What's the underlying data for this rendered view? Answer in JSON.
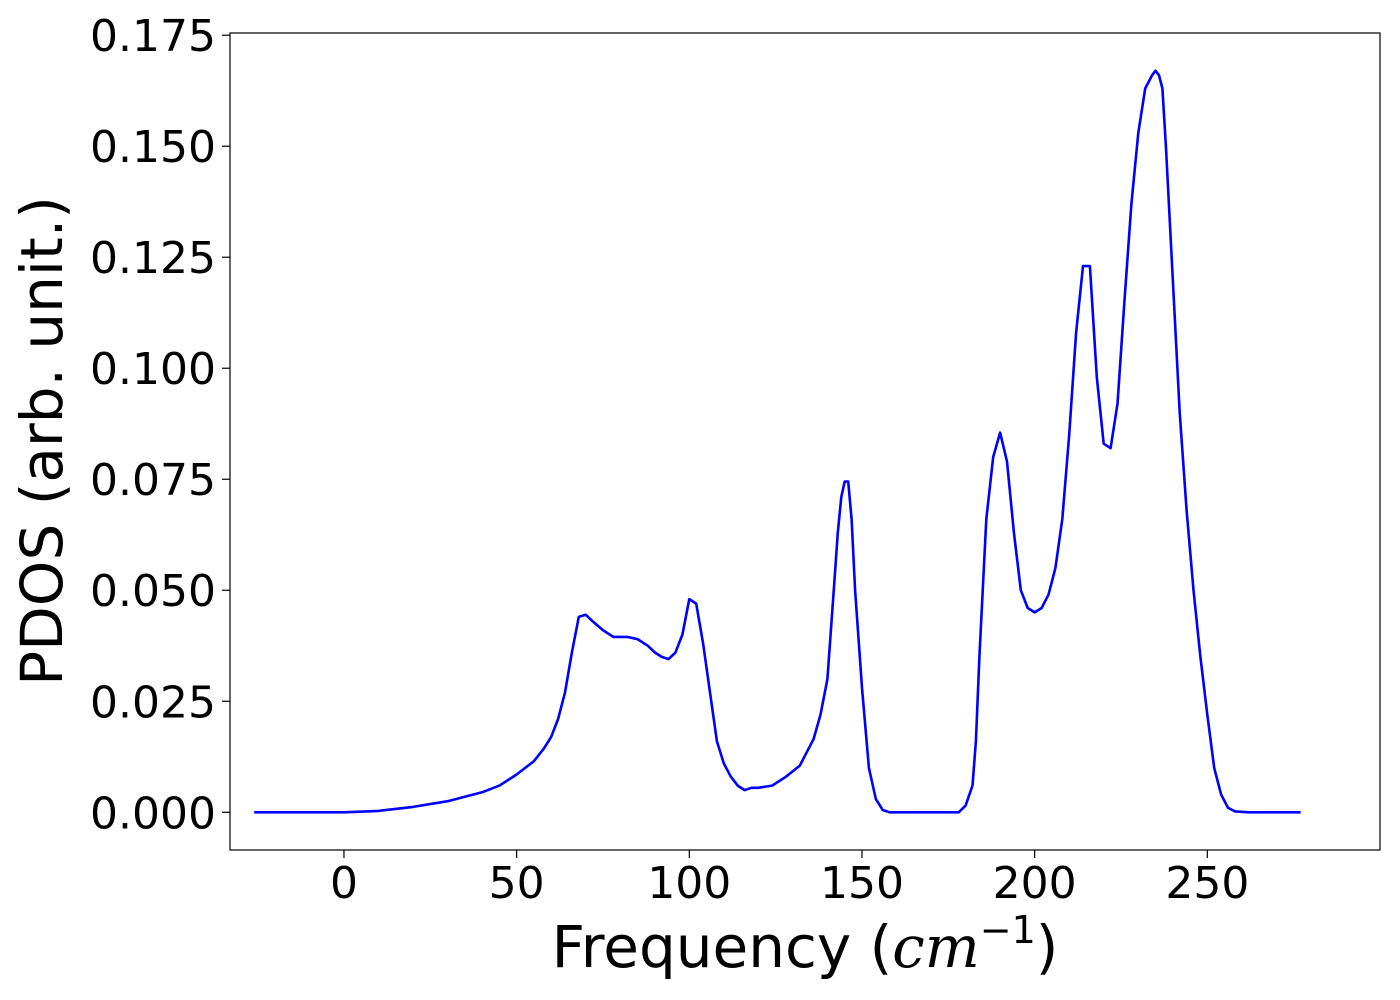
{
  "chart_data": {
    "type": "line",
    "title": "",
    "xlabel": {
      "prefix": "Frequency (",
      "var": "cm",
      "exp": "−1",
      "suffix": ")"
    },
    "ylabel": "PDOS (arb. unit.)",
    "xlim": [
      -33,
      300
    ],
    "ylim": [
      -0.0085,
      0.1755
    ],
    "grid": false,
    "legend": "none",
    "xticks": [
      {
        "value": 0,
        "label": "0"
      },
      {
        "value": 50,
        "label": "50"
      },
      {
        "value": 100,
        "label": "100"
      },
      {
        "value": 150,
        "label": "150"
      },
      {
        "value": 200,
        "label": "200"
      },
      {
        "value": 250,
        "label": "250"
      }
    ],
    "yticks": [
      {
        "value": 0.0,
        "label": "0.000"
      },
      {
        "value": 0.025,
        "label": "0.025"
      },
      {
        "value": 0.05,
        "label": "0.050"
      },
      {
        "value": 0.075,
        "label": "0.075"
      },
      {
        "value": 0.1,
        "label": "0.100"
      },
      {
        "value": 0.125,
        "label": "0.125"
      },
      {
        "value": 0.15,
        "label": "0.150"
      },
      {
        "value": 0.175,
        "label": "0.175"
      }
    ],
    "series": [
      {
        "color": "#0000ff",
        "x": [
          -26,
          0,
          10,
          20,
          30,
          40,
          45,
          50,
          55,
          58,
          60,
          62,
          64,
          66,
          68,
          70,
          72,
          75,
          78,
          80,
          82,
          85,
          88,
          90,
          92,
          94,
          96,
          98,
          100,
          102,
          104,
          106,
          108,
          110,
          112,
          114,
          116,
          118,
          120,
          124,
          128,
          132,
          134,
          136,
          138,
          140,
          141,
          142,
          143,
          144,
          145,
          146,
          147,
          148,
          150,
          152,
          154,
          156,
          158,
          160,
          165,
          170,
          175,
          178,
          180,
          182,
          183,
          184,
          186,
          188,
          190,
          192,
          194,
          196,
          198,
          200,
          202,
          204,
          206,
          208,
          210,
          212,
          214,
          216,
          218,
          220,
          222,
          224,
          226,
          228,
          230,
          232,
          234,
          235,
          236,
          237,
          238,
          240,
          242,
          244,
          246,
          248,
          250,
          252,
          254,
          256,
          258,
          262,
          270,
          277
        ],
        "y": [
          0.0,
          0.0,
          0.0003,
          0.0012,
          0.0025,
          0.0045,
          0.006,
          0.0085,
          0.0115,
          0.0145,
          0.017,
          0.021,
          0.027,
          0.036,
          0.044,
          0.0445,
          0.043,
          0.041,
          0.0395,
          0.0395,
          0.0395,
          0.039,
          0.0375,
          0.036,
          0.035,
          0.0345,
          0.036,
          0.04,
          0.048,
          0.047,
          0.038,
          0.027,
          0.016,
          0.011,
          0.008,
          0.006,
          0.005,
          0.0055,
          0.0055,
          0.006,
          0.008,
          0.0105,
          0.0135,
          0.0165,
          0.022,
          0.03,
          0.041,
          0.052,
          0.063,
          0.071,
          0.0745,
          0.0745,
          0.066,
          0.05,
          0.028,
          0.01,
          0.003,
          0.0005,
          0.0,
          0.0,
          0.0,
          0.0,
          0.0,
          0.0,
          0.0015,
          0.006,
          0.016,
          0.035,
          0.066,
          0.08,
          0.0855,
          0.079,
          0.063,
          0.05,
          0.046,
          0.045,
          0.046,
          0.049,
          0.055,
          0.066,
          0.085,
          0.108,
          0.123,
          0.123,
          0.098,
          0.083,
          0.082,
          0.092,
          0.115,
          0.137,
          0.153,
          0.163,
          0.166,
          0.167,
          0.166,
          0.163,
          0.15,
          0.12,
          0.09,
          0.068,
          0.05,
          0.035,
          0.022,
          0.01,
          0.004,
          0.001,
          0.0002,
          0.0,
          0.0,
          0.0
        ]
      }
    ]
  }
}
